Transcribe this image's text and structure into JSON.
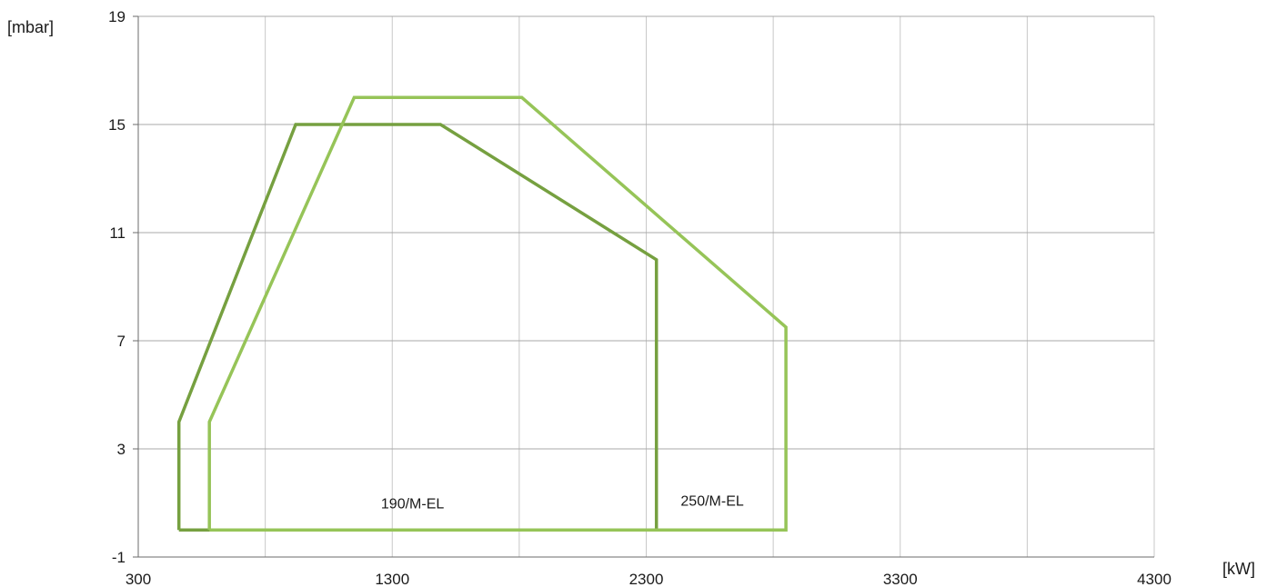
{
  "chart_data": {
    "type": "line",
    "xlabel": "[kW]",
    "ylabel": "[mbar]",
    "xlim": [
      300,
      4300
    ],
    "ylim": [
      -1,
      19
    ],
    "x_ticks": [
      300,
      1300,
      2300,
      3300,
      4300
    ],
    "x_minor_grid": [
      800,
      1800,
      2800,
      3800
    ],
    "y_ticks": [
      -1,
      3,
      7,
      11,
      15,
      19
    ],
    "grid": true,
    "series": [
      {
        "name": "190/M-EL",
        "color": "#76a040",
        "points": [
          [
            460,
            0
          ],
          [
            460,
            4
          ],
          [
            920,
            15
          ],
          [
            1490,
            15
          ],
          [
            2340,
            10
          ],
          [
            2340,
            0
          ],
          [
            460,
            0
          ]
        ]
      },
      {
        "name": "250/M-EL",
        "color": "#96c458",
        "points": [
          [
            580,
            0
          ],
          [
            580,
            4
          ],
          [
            1150,
            16
          ],
          [
            1810,
            16
          ],
          [
            2850,
            7.5
          ],
          [
            2850,
            0
          ],
          [
            580,
            0
          ]
        ]
      }
    ],
    "annotations": [
      {
        "text": "190/M-EL",
        "x": 1380,
        "y": 0.8
      },
      {
        "text": "250/M-EL",
        "x": 2560,
        "y": 0.9
      }
    ]
  }
}
